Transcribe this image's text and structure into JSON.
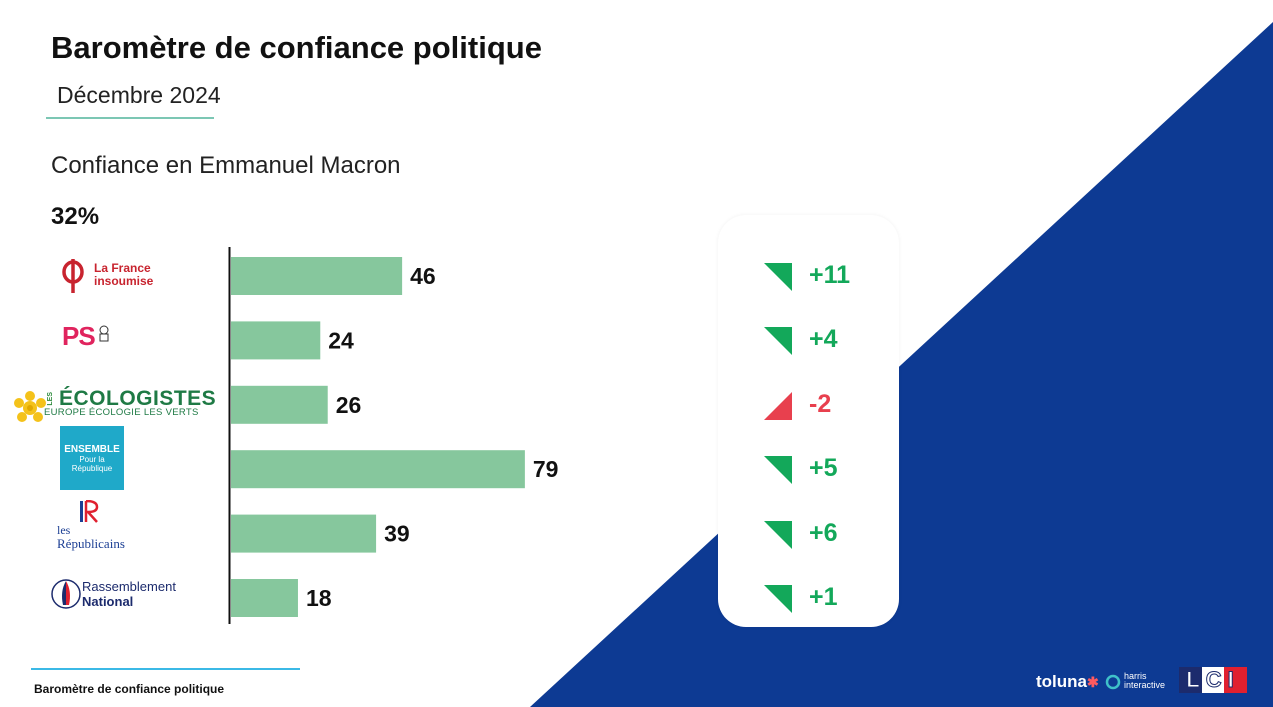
{
  "header": {
    "title": "Baromètre de confiance politique",
    "subtitle": "Décembre 2024"
  },
  "chart_heading": "Confiance en Emmanuel Macron",
  "overall_value": "32%",
  "parties": [
    {
      "logo_icon": "lfi-logo",
      "logo_text_1": "La France",
      "logo_text_2": "insoumise"
    },
    {
      "logo_icon": "ps-logo",
      "logo_text_1": "PS"
    },
    {
      "logo_icon": "ecologistes-logo",
      "logo_text_1": "LES",
      "logo_text_2": "ÉCOLOGISTES",
      "logo_text_3": "EUROPE ÉCOLOGIE LES VERTS"
    },
    {
      "logo_icon": "ensemble-logo",
      "logo_text_1": "ENSEMBLE",
      "logo_text_2": "Pour la",
      "logo_text_3": "République"
    },
    {
      "logo_icon": "lr-logo",
      "logo_text_1": "les",
      "logo_text_2": "Républicains"
    },
    {
      "logo_icon": "rn-logo",
      "logo_text_1": "Rassemblement",
      "logo_text_2": "National"
    }
  ],
  "chart_data": {
    "type": "bar",
    "orientation": "horizontal",
    "categories": [
      "La France insoumise",
      "PS",
      "Les Écologistes",
      "Ensemble pour la République",
      "Les Républicains",
      "Rassemblement National"
    ],
    "values": [
      46,
      24,
      26,
      79,
      39,
      18
    ],
    "xlim": [
      0,
      100
    ],
    "bar_color": "#86c79d",
    "changes": [
      {
        "label": "+11",
        "direction": "up"
      },
      {
        "label": "+4",
        "direction": "up"
      },
      {
        "label": "-2",
        "direction": "down"
      },
      {
        "label": "+5",
        "direction": "up"
      },
      {
        "label": "+6",
        "direction": "up"
      },
      {
        "label": "+1",
        "direction": "up"
      }
    ]
  },
  "colors": {
    "up": "#13a85a",
    "down": "#e8404e",
    "navy": "#0d3a93",
    "accent_rule": "#7cc7b4"
  },
  "footer": {
    "label": "Baromètre de confiance politique",
    "brand_1": "toluna",
    "brand_2_line1": "harris",
    "brand_2_line2": "interactive",
    "brand_3": "LCI"
  }
}
